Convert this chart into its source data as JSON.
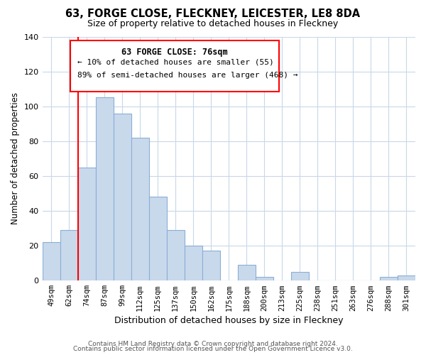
{
  "title": "63, FORGE CLOSE, FLECKNEY, LEICESTER, LE8 8DA",
  "subtitle": "Size of property relative to detached houses in Fleckney",
  "xlabel": "Distribution of detached houses by size in Fleckney",
  "ylabel": "Number of detached properties",
  "bar_labels": [
    "49sqm",
    "62sqm",
    "74sqm",
    "87sqm",
    "99sqm",
    "112sqm",
    "125sqm",
    "137sqm",
    "150sqm",
    "162sqm",
    "175sqm",
    "188sqm",
    "200sqm",
    "213sqm",
    "225sqm",
    "238sqm",
    "251sqm",
    "263sqm",
    "276sqm",
    "288sqm",
    "301sqm"
  ],
  "bar_values": [
    22,
    29,
    65,
    105,
    96,
    82,
    48,
    29,
    20,
    17,
    0,
    9,
    2,
    0,
    5,
    0,
    0,
    0,
    0,
    2,
    3
  ],
  "bar_color": "#c9d9ec",
  "bar_edge_color": "#8aafd4",
  "annotation_title": "63 FORGE CLOSE: 76sqm",
  "annotation_line1": "← 10% of detached houses are smaller (55)",
  "annotation_line2": "89% of semi-detached houses are larger (468) →",
  "ylim": [
    0,
    140
  ],
  "yticks": [
    0,
    20,
    40,
    60,
    80,
    100,
    120,
    140
  ],
  "redline_index": 2,
  "footer1": "Contains HM Land Registry data © Crown copyright and database right 2024.",
  "footer2": "Contains public sector information licensed under the Open Government Licence v3.0.",
  "background_color": "#ffffff",
  "grid_color": "#c8d8e8"
}
